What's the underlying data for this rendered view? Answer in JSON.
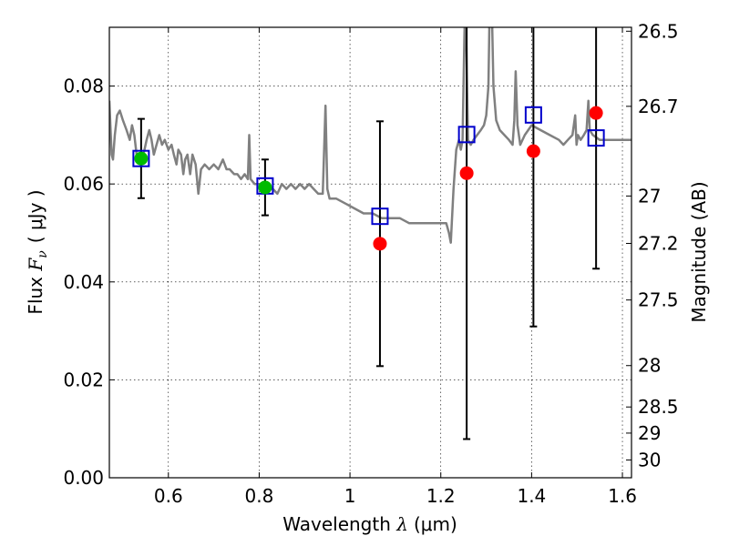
{
  "chart_data": {
    "type": "scatter",
    "title": "",
    "xlabel": {
      "prefix": "Wavelength ",
      "symbol": "λ",
      "unit": "(μm)"
    },
    "ylabel": {
      "prefix": "Flux ",
      "symbol": "F",
      "subscript": "ν",
      "unit": "( μJy )"
    },
    "y2label": "Magnitude (AB)",
    "xlim": [
      0.47,
      1.62
    ],
    "ylim": [
      0.0,
      0.092
    ],
    "grid": true,
    "x_ticks": [
      {
        "v": 0.6,
        "label": "0.6"
      },
      {
        "v": 0.8,
        "label": "0.8"
      },
      {
        "v": 1.0,
        "label": "1"
      },
      {
        "v": 1.2,
        "label": "1.2"
      },
      {
        "v": 1.4,
        "label": "1.4"
      },
      {
        "v": 1.6,
        "label": "1.6"
      }
    ],
    "y_ticks": [
      {
        "v": 0.0,
        "label": "0.00"
      },
      {
        "v": 0.02,
        "label": "0.02"
      },
      {
        "v": 0.04,
        "label": "0.04"
      },
      {
        "v": 0.06,
        "label": "0.06"
      },
      {
        "v": 0.08,
        "label": "0.08"
      }
    ],
    "mag_ticks": [
      {
        "mag": 26.5,
        "label": "26.5"
      },
      {
        "mag": 26.7,
        "label": "26.7"
      },
      {
        "mag": 27.0,
        "label": "27"
      },
      {
        "mag": 27.2,
        "label": "27.2"
      },
      {
        "mag": 27.5,
        "label": "27.5"
      },
      {
        "mag": 28.0,
        "label": "28"
      },
      {
        "mag": 28.5,
        "label": "28.5"
      },
      {
        "mag": 29.0,
        "label": "29"
      },
      {
        "mag": 30.0,
        "label": "30"
      }
    ],
    "colors": {
      "spectrum": "#808080",
      "model": "#0000cc",
      "observed_hst": "#00bb00",
      "observed_ir": "#ff0000",
      "errorbar": "#000000",
      "grid": "#000000"
    },
    "spectrum": [
      [
        0.47,
        0.077
      ],
      [
        0.475,
        0.066
      ],
      [
        0.478,
        0.065
      ],
      [
        0.482,
        0.07
      ],
      [
        0.487,
        0.074
      ],
      [
        0.493,
        0.075
      ],
      [
        0.5,
        0.073
      ],
      [
        0.508,
        0.071
      ],
      [
        0.515,
        0.069
      ],
      [
        0.52,
        0.072
      ],
      [
        0.525,
        0.07
      ],
      [
        0.53,
        0.066
      ],
      [
        0.538,
        0.065
      ],
      [
        0.545,
        0.066
      ],
      [
        0.552,
        0.069
      ],
      [
        0.558,
        0.071
      ],
      [
        0.563,
        0.069
      ],
      [
        0.568,
        0.066
      ],
      [
        0.574,
        0.068
      ],
      [
        0.58,
        0.07
      ],
      [
        0.586,
        0.068
      ],
      [
        0.592,
        0.069
      ],
      [
        0.6,
        0.067
      ],
      [
        0.607,
        0.068
      ],
      [
        0.612,
        0.066
      ],
      [
        0.618,
        0.064
      ],
      [
        0.622,
        0.067
      ],
      [
        0.628,
        0.066
      ],
      [
        0.633,
        0.062
      ],
      [
        0.637,
        0.065
      ],
      [
        0.642,
        0.066
      ],
      [
        0.648,
        0.062
      ],
      [
        0.653,
        0.066
      ],
      [
        0.66,
        0.064
      ],
      [
        0.666,
        0.058
      ],
      [
        0.672,
        0.063
      ],
      [
        0.68,
        0.064
      ],
      [
        0.69,
        0.063
      ],
      [
        0.7,
        0.064
      ],
      [
        0.71,
        0.063
      ],
      [
        0.72,
        0.065
      ],
      [
        0.728,
        0.063
      ],
      [
        0.735,
        0.063
      ],
      [
        0.745,
        0.062
      ],
      [
        0.752,
        0.062
      ],
      [
        0.76,
        0.061
      ],
      [
        0.768,
        0.062
      ],
      [
        0.775,
        0.061
      ],
      [
        0.778,
        0.07
      ],
      [
        0.781,
        0.061
      ],
      [
        0.79,
        0.06
      ],
      [
        0.8,
        0.06
      ],
      [
        0.81,
        0.059
      ],
      [
        0.82,
        0.059
      ],
      [
        0.83,
        0.059
      ],
      [
        0.84,
        0.058
      ],
      [
        0.85,
        0.06
      ],
      [
        0.86,
        0.059
      ],
      [
        0.87,
        0.06
      ],
      [
        0.88,
        0.059
      ],
      [
        0.89,
        0.06
      ],
      [
        0.9,
        0.059
      ],
      [
        0.91,
        0.06
      ],
      [
        0.92,
        0.059
      ],
      [
        0.93,
        0.058
      ],
      [
        0.94,
        0.058
      ],
      [
        0.946,
        0.076
      ],
      [
        0.95,
        0.059
      ],
      [
        0.955,
        0.057
      ],
      [
        0.97,
        0.057
      ],
      [
        0.99,
        0.056
      ],
      [
        1.01,
        0.055
      ],
      [
        1.03,
        0.054
      ],
      [
        1.05,
        0.054
      ],
      [
        1.07,
        0.053
      ],
      [
        1.09,
        0.053
      ],
      [
        1.11,
        0.053
      ],
      [
        1.13,
        0.052
      ],
      [
        1.15,
        0.052
      ],
      [
        1.17,
        0.052
      ],
      [
        1.19,
        0.052
      ],
      [
        1.2,
        0.052
      ],
      [
        1.212,
        0.052
      ],
      [
        1.218,
        0.05
      ],
      [
        1.222,
        0.048
      ],
      [
        1.228,
        0.059
      ],
      [
        1.234,
        0.067
      ],
      [
        1.24,
        0.069
      ],
      [
        1.244,
        0.067
      ],
      [
        1.248,
        0.069
      ],
      [
        1.252,
        0.09
      ],
      [
        1.254,
        0.098
      ],
      [
        1.256,
        0.09
      ],
      [
        1.26,
        0.069
      ],
      [
        1.266,
        0.068
      ],
      [
        1.272,
        0.069
      ],
      [
        1.28,
        0.07
      ],
      [
        1.288,
        0.071
      ],
      [
        1.295,
        0.072
      ],
      [
        1.3,
        0.074
      ],
      [
        1.305,
        0.08
      ],
      [
        1.308,
        0.098
      ],
      [
        1.312,
        0.098
      ],
      [
        1.316,
        0.08
      ],
      [
        1.322,
        0.073
      ],
      [
        1.33,
        0.071
      ],
      [
        1.34,
        0.07
      ],
      [
        1.35,
        0.069
      ],
      [
        1.358,
        0.068
      ],
      [
        1.362,
        0.073
      ],
      [
        1.365,
        0.083
      ],
      [
        1.369,
        0.072
      ],
      [
        1.375,
        0.068
      ],
      [
        1.385,
        0.07
      ],
      [
        1.4,
        0.072
      ],
      [
        1.42,
        0.071
      ],
      [
        1.44,
        0.07
      ],
      [
        1.46,
        0.069
      ],
      [
        1.47,
        0.068
      ],
      [
        1.48,
        0.069
      ],
      [
        1.49,
        0.07
      ],
      [
        1.496,
        0.074
      ],
      [
        1.499,
        0.068
      ],
      [
        1.502,
        0.07
      ],
      [
        1.508,
        0.069
      ],
      [
        1.515,
        0.07
      ],
      [
        1.521,
        0.071
      ],
      [
        1.525,
        0.077
      ],
      [
        1.528,
        0.071
      ],
      [
        1.535,
        0.07
      ],
      [
        1.55,
        0.069
      ],
      [
        1.57,
        0.069
      ],
      [
        1.585,
        0.069
      ],
      [
        1.6,
        0.069
      ],
      [
        1.62,
        0.069
      ]
    ],
    "model_points": [
      {
        "x": 0.54,
        "y": 0.0652
      },
      {
        "x": 0.813,
        "y": 0.0596
      },
      {
        "x": 1.066,
        "y": 0.0534
      },
      {
        "x": 1.257,
        "y": 0.0701
      },
      {
        "x": 1.404,
        "y": 0.0741
      },
      {
        "x": 1.542,
        "y": 0.0694
      }
    ],
    "observed_points": [
      {
        "x": 0.54,
        "y": 0.0652,
        "yerr": 0.0081,
        "band": "optical"
      },
      {
        "x": 0.813,
        "y": 0.0593,
        "yerr": 0.0057,
        "band": "optical"
      },
      {
        "x": 1.066,
        "y": 0.0478,
        "yerr": 0.025,
        "band": "ir"
      },
      {
        "x": 1.257,
        "y": 0.0622,
        "yerr": 0.0543,
        "band": "ir"
      },
      {
        "x": 1.404,
        "y": 0.0667,
        "yerr": 0.0358,
        "band": "ir"
      },
      {
        "x": 1.542,
        "y": 0.0745,
        "yerr": 0.0318,
        "band": "ir"
      }
    ]
  }
}
